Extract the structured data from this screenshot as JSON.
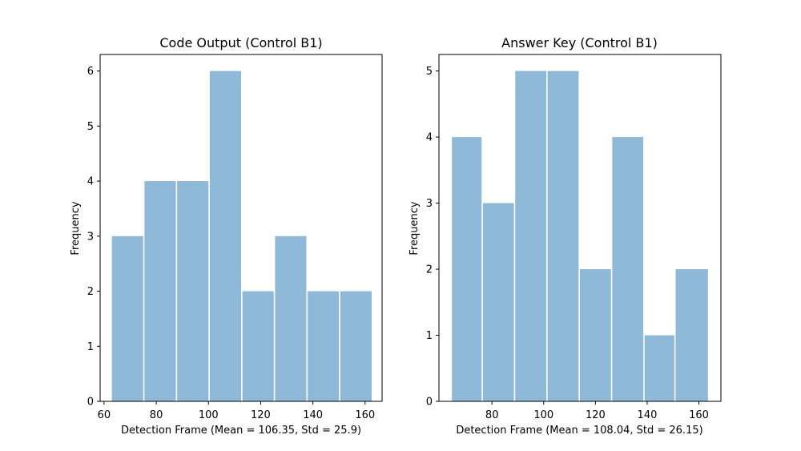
{
  "chart_data": [
    {
      "type": "bar",
      "title": "Code Output (Control B1)",
      "xlabel": "Detection Frame (Mean = 106.35, Std = 25.9)",
      "ylabel": "Frequency",
      "xlim": [
        58.5,
        166.5
      ],
      "ylim": [
        0,
        6.3
      ],
      "xticks": [
        60,
        80,
        100,
        120,
        140,
        160
      ],
      "yticks": [
        0,
        1,
        2,
        3,
        4,
        5,
        6
      ],
      "bar_color": "#8eb9d9",
      "bars": [
        {
          "x0": 63.0,
          "x1": 75.0,
          "value": 3
        },
        {
          "x0": 75.5,
          "x1": 87.5,
          "value": 4
        },
        {
          "x0": 88.0,
          "x1": 100.0,
          "value": 4
        },
        {
          "x0": 100.5,
          "x1": 112.5,
          "value": 6
        },
        {
          "x0": 113.0,
          "x1": 125.0,
          "value": 2
        },
        {
          "x0": 125.5,
          "x1": 137.5,
          "value": 3
        },
        {
          "x0": 138.0,
          "x1": 150.0,
          "value": 2
        },
        {
          "x0": 150.5,
          "x1": 162.5,
          "value": 2
        }
      ]
    },
    {
      "type": "bar",
      "title": "Answer Key (Control B1)",
      "xlabel": "Detection Frame (Mean = 108.04, Std = 26.15)",
      "ylabel": "Frequency",
      "xlim": [
        59.5,
        168.5
      ],
      "ylim": [
        0,
        5.25
      ],
      "xticks": [
        80,
        100,
        120,
        140,
        160
      ],
      "yticks": [
        0,
        1,
        2,
        3,
        4,
        5
      ],
      "bar_color": "#8eb9d9",
      "bars": [
        {
          "x0": 64.5,
          "x1": 76.0,
          "value": 4
        },
        {
          "x0": 76.5,
          "x1": 88.5,
          "value": 3
        },
        {
          "x0": 89.0,
          "x1": 101.0,
          "value": 5
        },
        {
          "x0": 101.5,
          "x1": 113.5,
          "value": 5
        },
        {
          "x0": 114.0,
          "x1": 126.0,
          "value": 2
        },
        {
          "x0": 126.5,
          "x1": 138.5,
          "value": 4
        },
        {
          "x0": 139.0,
          "x1": 150.5,
          "value": 1
        },
        {
          "x0": 151.0,
          "x1": 163.5,
          "value": 2
        }
      ]
    }
  ]
}
